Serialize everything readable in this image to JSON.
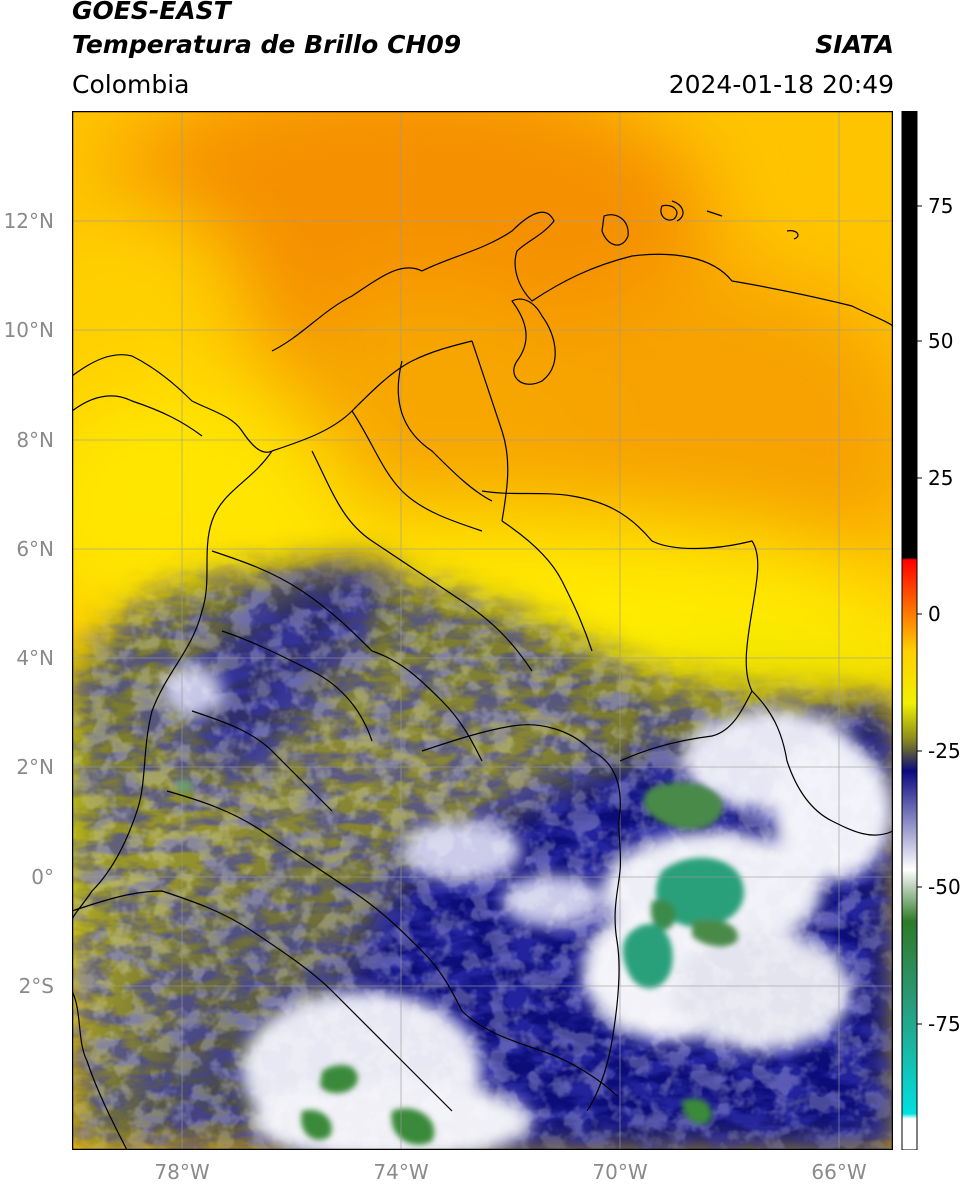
{
  "header": {
    "satellite": "GOES-EAST",
    "product": "Temperatura de Brillo CH09",
    "organization": "SIATA",
    "region": "Colombia",
    "timestamp": "2024-01-18 20:49"
  },
  "map": {
    "lon_range": [
      -80,
      -65
    ],
    "lat_range": [
      -5,
      14
    ],
    "lat_labels": [
      "12°N",
      "10°N",
      "8°N",
      "6°N",
      "4°N",
      "2°N",
      "0°",
      "2°S"
    ],
    "lat_values": [
      12,
      10,
      8,
      6,
      4,
      2,
      0,
      -2
    ],
    "lon_labels": [
      "78°W",
      "74°W",
      "70°W",
      "66°W"
    ],
    "lon_values": [
      -78,
      -74,
      -70,
      -66
    ],
    "gridlines": true
  },
  "colorbar": {
    "range": [
      -100,
      90
    ],
    "tick_labels": [
      "75",
      "50",
      "25",
      "0",
      "-25",
      "-50",
      "-75"
    ],
    "tick_values": [
      75,
      50,
      25,
      0,
      -25,
      -50,
      -75
    ],
    "units_hint": "°C",
    "color_stops": [
      {
        "value": -100,
        "color": "#ffffff"
      },
      {
        "value": -95,
        "color": "#ffffff"
      },
      {
        "value": -94,
        "color": "#00e0e0"
      },
      {
        "value": -75,
        "color": "#2a9c7c"
      },
      {
        "value": -60,
        "color": "#2f7a2a"
      },
      {
        "value": -50,
        "color": "#ffffff"
      },
      {
        "value": -40,
        "color": "#8080c0"
      },
      {
        "value": -30,
        "color": "#0a0a80"
      },
      {
        "value": -25,
        "color": "#4a4a4a"
      },
      {
        "value": -15,
        "color": "#f0f000"
      },
      {
        "value": -5,
        "color": "#ffd000"
      },
      {
        "value": 8,
        "color": "#ff0000"
      },
      {
        "value": 9,
        "color": "#000000"
      },
      {
        "value": 90,
        "color": "#000000"
      }
    ]
  }
}
